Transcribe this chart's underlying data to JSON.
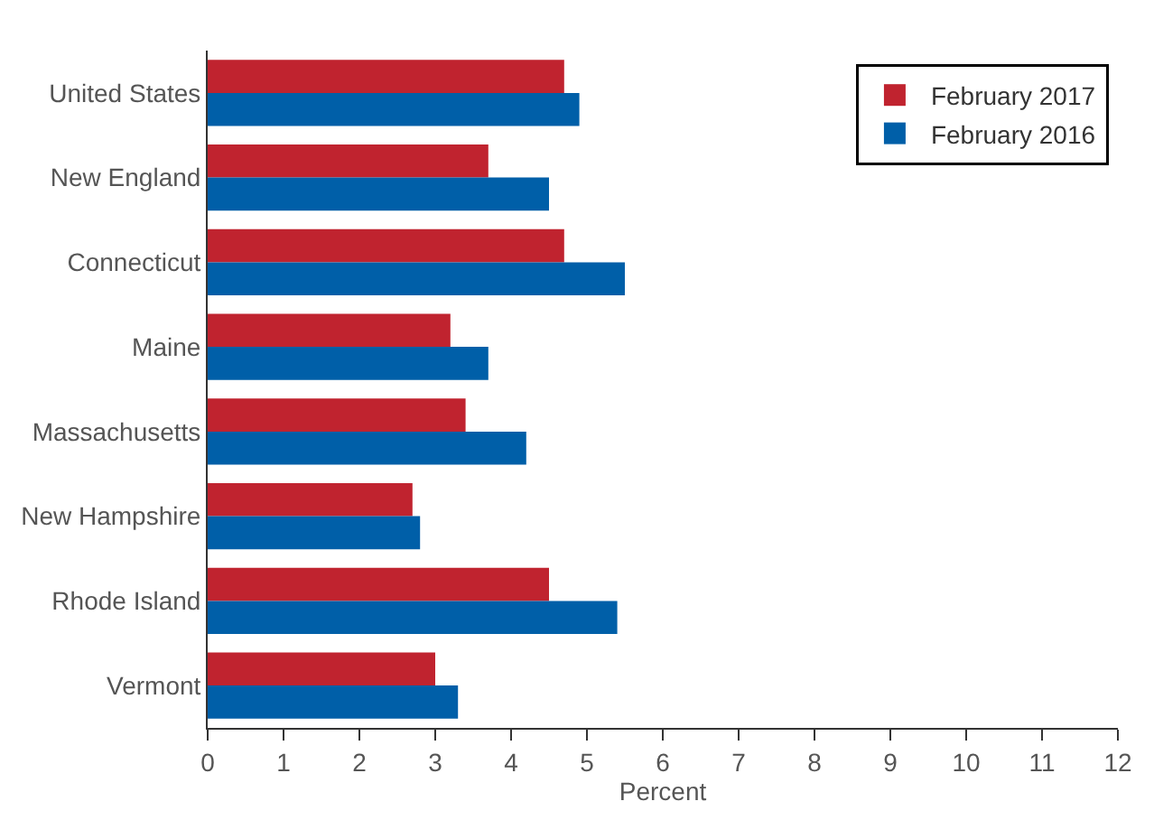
{
  "chart_data": {
    "type": "bar",
    "orientation": "horizontal",
    "xlabel": "Percent",
    "categories": [
      "United States",
      "New England",
      "Connecticut",
      "Maine",
      "Massachusetts",
      "New Hampshire",
      "Rhode Island",
      "Vermont"
    ],
    "series": [
      {
        "name": "February 2017",
        "color": "#c0232f",
        "values": [
          4.7,
          3.7,
          4.7,
          3.2,
          3.4,
          2.7,
          4.5,
          3.0
        ]
      },
      {
        "name": "February 2016",
        "color": "#005fa8",
        "values": [
          4.9,
          4.5,
          5.5,
          3.7,
          4.2,
          2.8,
          5.4,
          3.3
        ]
      }
    ],
    "xlim": [
      0,
      12
    ],
    "xticks": [
      0,
      1,
      2,
      3,
      4,
      5,
      6,
      7,
      8,
      9,
      10,
      11,
      12
    ],
    "legend": "top right"
  }
}
